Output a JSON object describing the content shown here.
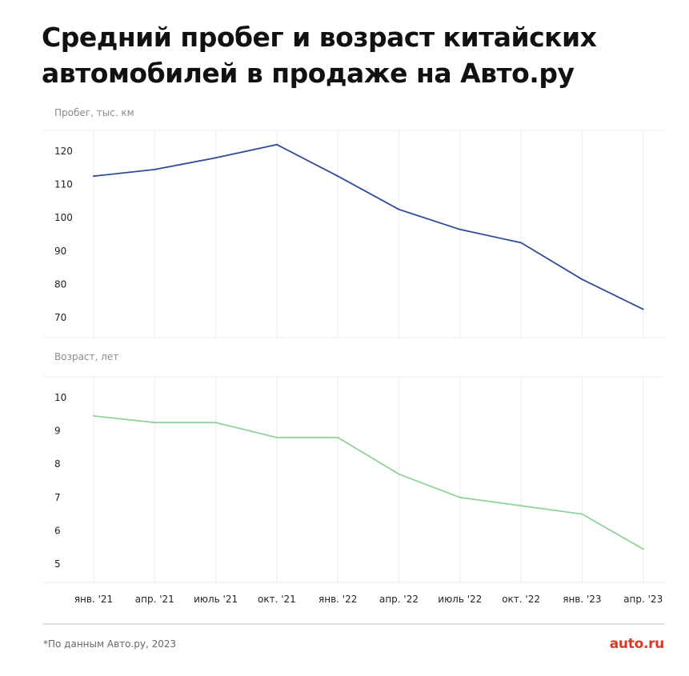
{
  "title": "Средний пробег и возраст китайских автомобилей в продаже на Авто.ру",
  "footnote": "*По данным Авто.ру, 2023",
  "logo": "auto.ru",
  "colors": {
    "mileage_line": "#2e4a9b",
    "age_line": "#8fd39a",
    "grid": "#ebebeb",
    "divider": "#c9c1b6",
    "logo": "#db3727"
  },
  "chart_data": [
    {
      "type": "line",
      "ylabel": "Пробег, тыс. км",
      "categories": [
        "янв. '21",
        "апр. '21",
        "июль '21",
        "окт. '21",
        "янв. '22",
        "апр. '22",
        "июль '22",
        "окт. '22",
        "янв. '23",
        "апр. '23"
      ],
      "yticks": [
        70,
        80,
        90,
        100,
        110,
        120
      ],
      "ylim": [
        66,
        126
      ],
      "grid": true,
      "series": [
        {
          "values": [
            112.5,
            114.5,
            118.0,
            122.0,
            112.5,
            102.5,
            96.5,
            92.5,
            81.5,
            72.5
          ]
        }
      ]
    },
    {
      "type": "line",
      "ylabel": "Возраст, лет",
      "categories": [
        "янв. '21",
        "апр. '21",
        "июль '21",
        "окт. '21",
        "янв. '22",
        "апр. '22",
        "июль '22",
        "окт. '22",
        "янв. '23",
        "апр. '23"
      ],
      "yticks": [
        5,
        6,
        7,
        8,
        9,
        10
      ],
      "ylim": [
        4.4,
        10.6
      ],
      "grid": true,
      "series": [
        {
          "values": [
            9.45,
            9.25,
            9.25,
            8.8,
            8.8,
            7.7,
            7.0,
            6.75,
            6.5,
            5.45
          ]
        }
      ]
    }
  ]
}
